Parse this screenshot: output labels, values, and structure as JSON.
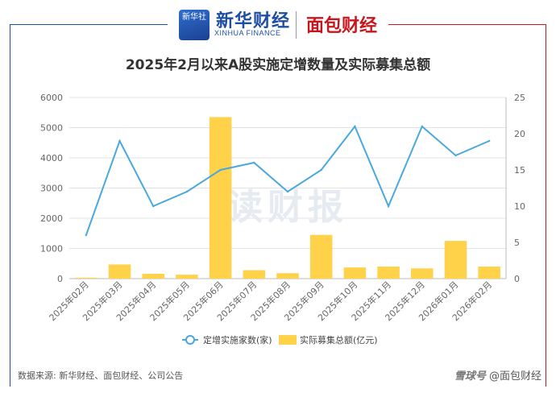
{
  "header": {
    "xinhua_logo_text": "新华社",
    "xinhua_name": "新华财经",
    "xinhua_en": "XINHUA FINANCE",
    "mianbao_name": "面包财经"
  },
  "colors": {
    "line": "#4aa8dc",
    "bar": "#ffd24a",
    "brand_blue": "#1e4ea3",
    "brand_red": "#c8161d"
  },
  "watermark": "读财报",
  "footer": {
    "source": "数据来源: 新华财经、面包财经、公司公告",
    "credit": "@面包财经",
    "credit_prefix": "雪球号"
  },
  "chart_data": {
    "type": "bar",
    "title": "2025年2月以来A股实施定增数量及实际募集总额",
    "categories": [
      "2025年02月",
      "2025年03月",
      "2025年04月",
      "2025年05月",
      "2025年06月",
      "2025年07月",
      "2025年08月",
      "2025年09月",
      "2025年10月",
      "2025年11月",
      "2025年12月",
      "2026年01月",
      "2026年02月"
    ],
    "series": [
      {
        "name": "定增实施家数(家)",
        "type": "line",
        "axis": "right",
        "values": [
          6,
          19,
          10,
          12,
          15,
          16,
          12,
          15,
          21,
          10,
          21,
          17,
          19
        ]
      },
      {
        "name": "实际募集总额(亿元)",
        "type": "bar",
        "axis": "left",
        "values": [
          30,
          470,
          160,
          130,
          5350,
          280,
          180,
          1450,
          370,
          400,
          340,
          1250,
          400
        ]
      }
    ],
    "y_left": {
      "min": 0,
      "max": 6000,
      "ticks": [
        0,
        1000,
        2000,
        3000,
        4000,
        5000,
        6000
      ]
    },
    "y_right": {
      "min": 0,
      "max": 25,
      "ticks": [
        0,
        5,
        10,
        15,
        20,
        25
      ]
    },
    "grid": "horizontal",
    "legend_position": "bottom"
  }
}
